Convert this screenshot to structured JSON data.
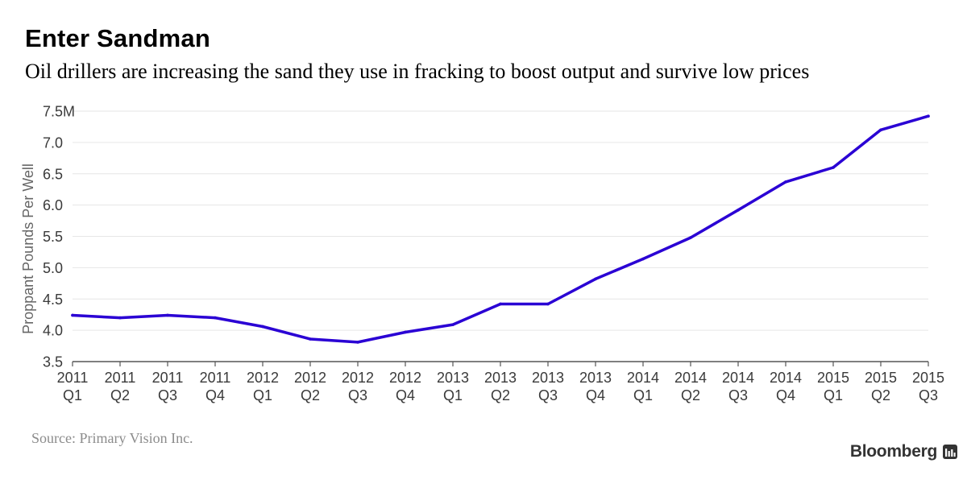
{
  "header": {
    "title": "Enter Sandman",
    "subtitle": "Oil drillers are increasing the sand they use in fracking to boost output and survive low prices"
  },
  "footer": {
    "source": "Source: Primary Vision Inc.",
    "brand": "Bloomberg"
  },
  "colors": {
    "line": "#2a00d4",
    "grid": "#e6e6e6",
    "axis": "#555555"
  },
  "chart_data": {
    "type": "line",
    "title": "Enter Sandman",
    "subtitle": "Oil drillers are increasing the sand they use in fracking to boost output and survive low prices",
    "xlabel": "",
    "ylabel": "Proppant Pounds Per Well",
    "ylim": [
      3.5,
      7.5
    ],
    "yticks": [
      3.5,
      4.0,
      4.5,
      5.0,
      5.5,
      6.0,
      6.5,
      7.0,
      7.5
    ],
    "ytick_labels": [
      "3.5",
      "4.0",
      "4.5",
      "5.0",
      "5.5",
      "6.0",
      "6.5",
      "7.0",
      "7.5M"
    ],
    "grid": true,
    "legend": "none",
    "categories": [
      {
        "year": "2011",
        "quarter": "Q1"
      },
      {
        "year": "2011",
        "quarter": "Q2"
      },
      {
        "year": "2011",
        "quarter": "Q3"
      },
      {
        "year": "2011",
        "quarter": "Q4"
      },
      {
        "year": "2012",
        "quarter": "Q1"
      },
      {
        "year": "2012",
        "quarter": "Q2"
      },
      {
        "year": "2012",
        "quarter": "Q3"
      },
      {
        "year": "2012",
        "quarter": "Q4"
      },
      {
        "year": "2013",
        "quarter": "Q1"
      },
      {
        "year": "2013",
        "quarter": "Q2"
      },
      {
        "year": "2013",
        "quarter": "Q3"
      },
      {
        "year": "2013",
        "quarter": "Q4"
      },
      {
        "year": "2014",
        "quarter": "Q1"
      },
      {
        "year": "2014",
        "quarter": "Q2"
      },
      {
        "year": "2014",
        "quarter": "Q3"
      },
      {
        "year": "2014",
        "quarter": "Q4"
      },
      {
        "year": "2015",
        "quarter": "Q1"
      },
      {
        "year": "2015",
        "quarter": "Q2"
      },
      {
        "year": "2015",
        "quarter": "Q3"
      }
    ],
    "series": [
      {
        "values": [
          4.24,
          4.2,
          4.24,
          4.2,
          4.06,
          3.86,
          3.81,
          3.97,
          4.09,
          4.42,
          4.42,
          4.82,
          5.14,
          5.48,
          5.92,
          6.37,
          6.6,
          7.2,
          7.42
        ]
      }
    ]
  }
}
